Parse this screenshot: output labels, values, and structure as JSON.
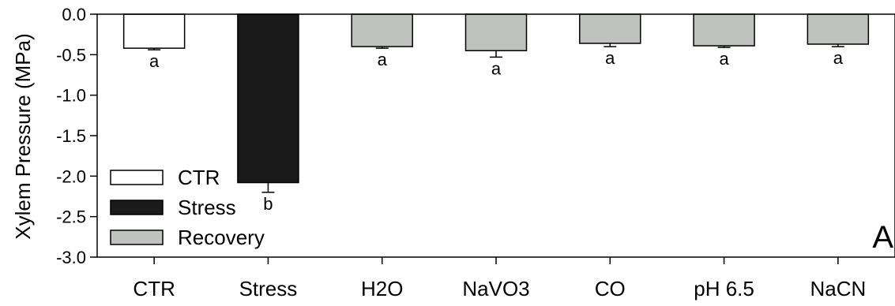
{
  "chart_data": {
    "type": "bar",
    "title": "",
    "ylabel": "Xylem Pressure (MPa)",
    "xlabel": "",
    "ylim": [
      -3.0,
      0.0
    ],
    "yticks": [
      0.0,
      -0.5,
      -1.0,
      -1.5,
      -2.0,
      -2.5,
      -3.0
    ],
    "ytick_labels": [
      "0.0",
      "-0.5",
      "-1.0",
      "-1.5",
      "-2.0",
      "-2.5",
      "-3.0"
    ],
    "categories": [
      "CTR",
      "Stress",
      "H2O",
      "NaVO3",
      "CO",
      "pH 6.5",
      "NaCN"
    ],
    "values": [
      -0.42,
      -2.08,
      -0.4,
      -0.45,
      -0.36,
      -0.39,
      -0.37
    ],
    "errors": [
      0.02,
      0.12,
      0.02,
      0.08,
      0.04,
      0.02,
      0.03
    ],
    "groups": [
      "CTR",
      "Stress",
      "Recovery",
      "Recovery",
      "Recovery",
      "Recovery",
      "Recovery"
    ],
    "significance_letters": [
      "a",
      "b",
      "a",
      "a",
      "a",
      "a",
      "a"
    ],
    "legend": {
      "placement": "bottom-left",
      "entries": [
        {
          "name": "CTR",
          "color": "#ffffff"
        },
        {
          "name": "Stress",
          "color": "#1a1a1a"
        },
        {
          "name": "Recovery",
          "color": "#c0c2bf"
        }
      ]
    },
    "panel_label": "A",
    "grid": false
  }
}
